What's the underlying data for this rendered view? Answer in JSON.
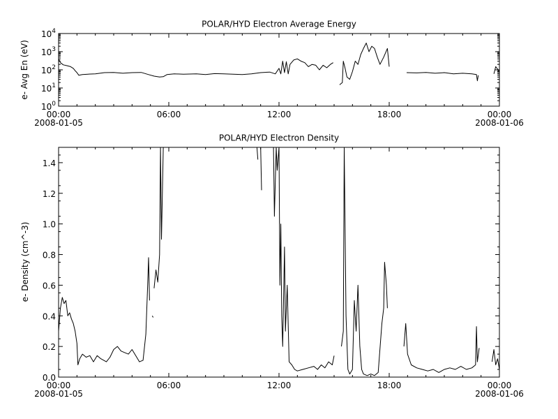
{
  "chart_data": [
    {
      "type": "line",
      "title": "POLAR/HYD  Electron Average Energy",
      "ylabel": "e- Avg En (eV)",
      "yscale": "log",
      "ylim": [
        1,
        10000
      ],
      "yticks": [
        {
          "value": 1,
          "base": "10",
          "exp": "0"
        },
        {
          "value": 10,
          "base": "10",
          "exp": "1"
        },
        {
          "value": 100,
          "base": "10",
          "exp": "2"
        },
        {
          "value": 1000,
          "base": "10",
          "exp": "3"
        },
        {
          "value": 10000,
          "base": "10",
          "exp": "4"
        }
      ],
      "xlim_hours": [
        0,
        24
      ],
      "xticks": [
        {
          "hour": 0,
          "label": "00:00",
          "date": "2008-01-05"
        },
        {
          "hour": 6,
          "label": "06:00",
          "date": ""
        },
        {
          "hour": 12,
          "label": "12:00",
          "date": ""
        },
        {
          "hour": 18,
          "label": "18:00",
          "date": ""
        },
        {
          "hour": 24,
          "label": "00:00",
          "date": "2008-01-06"
        }
      ],
      "color": "#000000",
      "series": [
        {
          "points": [
            [
              0.0,
              400
            ],
            [
              0.1,
              250
            ],
            [
              0.25,
              190
            ],
            [
              0.45,
              170
            ],
            [
              0.65,
              150
            ],
            [
              0.8,
              120
            ],
            [
              0.9,
              90
            ],
            [
              1.0,
              70
            ],
            [
              1.1,
              50
            ],
            [
              1.3,
              55
            ],
            [
              1.6,
              58
            ],
            [
              2.0,
              60
            ],
            [
              2.5,
              70
            ],
            [
              3.0,
              72
            ],
            [
              3.5,
              65
            ],
            [
              4.0,
              70
            ],
            [
              4.5,
              72
            ],
            [
              4.9,
              55
            ],
            [
              5.2,
              45
            ],
            [
              5.5,
              40
            ],
            [
              5.7,
              42
            ],
            [
              5.9,
              55
            ],
            [
              6.3,
              60
            ],
            [
              6.8,
              58
            ],
            [
              7.5,
              60
            ],
            [
              8.0,
              55
            ],
            [
              8.5,
              62
            ],
            [
              9.0,
              60
            ],
            [
              9.5,
              58
            ],
            [
              10.0,
              55
            ],
            [
              10.5,
              60
            ],
            [
              11.0,
              70
            ],
            [
              11.5,
              75
            ],
            [
              11.8,
              60
            ],
            [
              12.0,
              120
            ],
            [
              12.1,
              60
            ],
            [
              12.2,
              300
            ],
            [
              12.3,
              70
            ],
            [
              12.4,
              280
            ],
            [
              12.5,
              60
            ],
            [
              12.6,
              200
            ],
            [
              12.8,
              350
            ],
            [
              13.0,
              400
            ],
            [
              13.2,
              300
            ],
            [
              13.4,
              250
            ],
            [
              13.6,
              150
            ],
            [
              13.8,
              200
            ],
            [
              14.0,
              180
            ],
            [
              14.2,
              100
            ],
            [
              14.4,
              180
            ],
            [
              14.6,
              130
            ],
            [
              14.8,
              200
            ],
            [
              14.95,
              250
            ]
          ]
        },
        {
          "points": [
            [
              15.3,
              15
            ],
            [
              15.45,
              20
            ],
            [
              15.5,
              300
            ],
            [
              15.6,
              120
            ],
            [
              15.7,
              40
            ],
            [
              15.85,
              30
            ],
            [
              16.0,
              80
            ],
            [
              16.15,
              300
            ],
            [
              16.3,
              200
            ],
            [
              16.45,
              700
            ],
            [
              16.6,
              1500
            ],
            [
              16.75,
              3000
            ],
            [
              16.9,
              1000
            ],
            [
              17.05,
              2000
            ],
            [
              17.2,
              1500
            ],
            [
              17.35,
              500
            ],
            [
              17.5,
              200
            ],
            [
              17.7,
              500
            ],
            [
              17.9,
              1500
            ],
            [
              18.0,
              150
            ]
          ]
        },
        {
          "points": [
            [
              18.95,
              70
            ],
            [
              19.5,
              68
            ],
            [
              20.0,
              72
            ],
            [
              20.5,
              65
            ],
            [
              21.0,
              70
            ],
            [
              21.5,
              60
            ],
            [
              22.0,
              65
            ],
            [
              22.5,
              60
            ],
            [
              22.75,
              55
            ],
            [
              22.8,
              25
            ],
            [
              22.85,
              50
            ]
          ]
        },
        {
          "points": [
            [
              23.7,
              60
            ],
            [
              23.8,
              150
            ],
            [
              23.9,
              110
            ],
            [
              24.0,
              80
            ]
          ]
        }
      ]
    },
    {
      "type": "line",
      "title": "POLAR/HYD  Electron Density",
      "ylabel": "e- Density (cm^-3)",
      "yscale": "linear",
      "ylim": [
        0,
        1.5
      ],
      "yticks": [
        {
          "value": 0.0,
          "label": "0.0"
        },
        {
          "value": 0.2,
          "label": "0.2"
        },
        {
          "value": 0.4,
          "label": "0.4"
        },
        {
          "value": 0.6,
          "label": "0.6"
        },
        {
          "value": 0.8,
          "label": "0.8"
        },
        {
          "value": 1.0,
          "label": "1.0"
        },
        {
          "value": 1.2,
          "label": "1.2"
        },
        {
          "value": 1.4,
          "label": "1.4"
        }
      ],
      "xlim_hours": [
        0,
        24
      ],
      "xticks": [
        {
          "hour": 0,
          "label": "00:00",
          "date": "2008-01-05"
        },
        {
          "hour": 6,
          "label": "06:00",
          "date": ""
        },
        {
          "hour": 12,
          "label": "12:00",
          "date": ""
        },
        {
          "hour": 18,
          "label": "18:00",
          "date": ""
        },
        {
          "hour": 24,
          "label": "00:00",
          "date": "2008-01-06"
        }
      ],
      "color": "#000000",
      "series": [
        {
          "points": [
            [
              0.0,
              0.3
            ],
            [
              0.1,
              0.45
            ],
            [
              0.2,
              0.52
            ],
            [
              0.3,
              0.48
            ],
            [
              0.4,
              0.5
            ],
            [
              0.5,
              0.4
            ],
            [
              0.6,
              0.42
            ],
            [
              0.7,
              0.38
            ],
            [
              0.8,
              0.35
            ],
            [
              0.9,
              0.3
            ],
            [
              1.0,
              0.22
            ],
            [
              1.05,
              0.08
            ],
            [
              1.15,
              0.12
            ],
            [
              1.3,
              0.15
            ],
            [
              1.5,
              0.13
            ],
            [
              1.7,
              0.14
            ],
            [
              1.9,
              0.1
            ],
            [
              2.1,
              0.14
            ],
            [
              2.3,
              0.12
            ],
            [
              2.6,
              0.1
            ],
            [
              2.8,
              0.13
            ],
            [
              3.0,
              0.18
            ],
            [
              3.2,
              0.2
            ],
            [
              3.4,
              0.17
            ],
            [
              3.6,
              0.16
            ],
            [
              3.8,
              0.15
            ],
            [
              4.0,
              0.18
            ],
            [
              4.2,
              0.14
            ],
            [
              4.4,
              0.1
            ],
            [
              4.6,
              0.11
            ],
            [
              4.75,
              0.28
            ],
            [
              4.85,
              0.6
            ],
            [
              4.9,
              0.78
            ],
            [
              4.95,
              0.5
            ]
          ]
        },
        {
          "points": [
            [
              5.1,
              0.4
            ],
            [
              5.15,
              0.39
            ]
          ]
        },
        {
          "points": [
            [
              5.2,
              0.58
            ],
            [
              5.3,
              0.7
            ],
            [
              5.4,
              0.62
            ],
            [
              5.5,
              0.8
            ],
            [
              5.55,
              1.5
            ],
            [
              5.6,
              0.9
            ],
            [
              5.7,
              1.5
            ]
          ]
        },
        {
          "points": [
            [
              10.8,
              1.5
            ],
            [
              10.85,
              1.42
            ]
          ]
        },
        {
          "points": [
            [
              11.0,
              1.5
            ],
            [
              11.05,
              1.22
            ]
          ]
        },
        {
          "points": [
            [
              11.7,
              1.5
            ],
            [
              11.75,
              1.05
            ],
            [
              11.85,
              1.5
            ],
            [
              11.9,
              1.35
            ],
            [
              12.0,
              1.5
            ],
            [
              12.05,
              0.6
            ],
            [
              12.1,
              1.0
            ],
            [
              12.15,
              0.4
            ],
            [
              12.2,
              0.2
            ],
            [
              12.3,
              0.85
            ],
            [
              12.35,
              0.3
            ],
            [
              12.45,
              0.6
            ],
            [
              12.55,
              0.1
            ],
            [
              12.7,
              0.08
            ],
            [
              12.85,
              0.05
            ],
            [
              13.0,
              0.04
            ],
            [
              13.3,
              0.05
            ],
            [
              13.6,
              0.06
            ],
            [
              13.9,
              0.07
            ],
            [
              14.1,
              0.05
            ],
            [
              14.3,
              0.08
            ],
            [
              14.5,
              0.06
            ],
            [
              14.7,
              0.1
            ],
            [
              14.9,
              0.08
            ],
            [
              15.0,
              0.14
            ]
          ]
        },
        {
          "points": [
            [
              15.4,
              0.2
            ],
            [
              15.5,
              0.3
            ],
            [
              15.55,
              1.5
            ],
            [
              15.65,
              0.4
            ],
            [
              15.75,
              0.05
            ],
            [
              15.85,
              0.02
            ],
            [
              16.0,
              0.05
            ],
            [
              16.1,
              0.5
            ],
            [
              16.2,
              0.3
            ],
            [
              16.3,
              0.6
            ],
            [
              16.4,
              0.2
            ],
            [
              16.5,
              0.05
            ],
            [
              16.6,
              0.02
            ],
            [
              16.8,
              0.01
            ],
            [
              17.0,
              0.02
            ],
            [
              17.2,
              0.01
            ],
            [
              17.4,
              0.03
            ],
            [
              17.6,
              0.35
            ],
            [
              17.7,
              0.45
            ],
            [
              17.75,
              0.75
            ],
            [
              17.85,
              0.6
            ],
            [
              17.9,
              0.45
            ]
          ]
        },
        {
          "points": [
            [
              18.8,
              0.2
            ],
            [
              18.9,
              0.35
            ],
            [
              19.0,
              0.15
            ],
            [
              19.2,
              0.08
            ],
            [
              19.5,
              0.06
            ],
            [
              19.8,
              0.05
            ],
            [
              20.1,
              0.04
            ],
            [
              20.4,
              0.05
            ],
            [
              20.7,
              0.03
            ],
            [
              21.0,
              0.05
            ],
            [
              21.3,
              0.06
            ],
            [
              21.6,
              0.05
            ],
            [
              21.9,
              0.07
            ],
            [
              22.2,
              0.05
            ],
            [
              22.5,
              0.06
            ],
            [
              22.7,
              0.08
            ],
            [
              22.75,
              0.33
            ],
            [
              22.8,
              0.1
            ],
            [
              22.9,
              0.19
            ]
          ]
        },
        {
          "points": [
            [
              23.6,
              0.1
            ],
            [
              23.7,
              0.18
            ],
            [
              23.8,
              0.08
            ],
            [
              23.9,
              0.12
            ],
            [
              24.0,
              0.05
            ]
          ]
        }
      ]
    }
  ]
}
